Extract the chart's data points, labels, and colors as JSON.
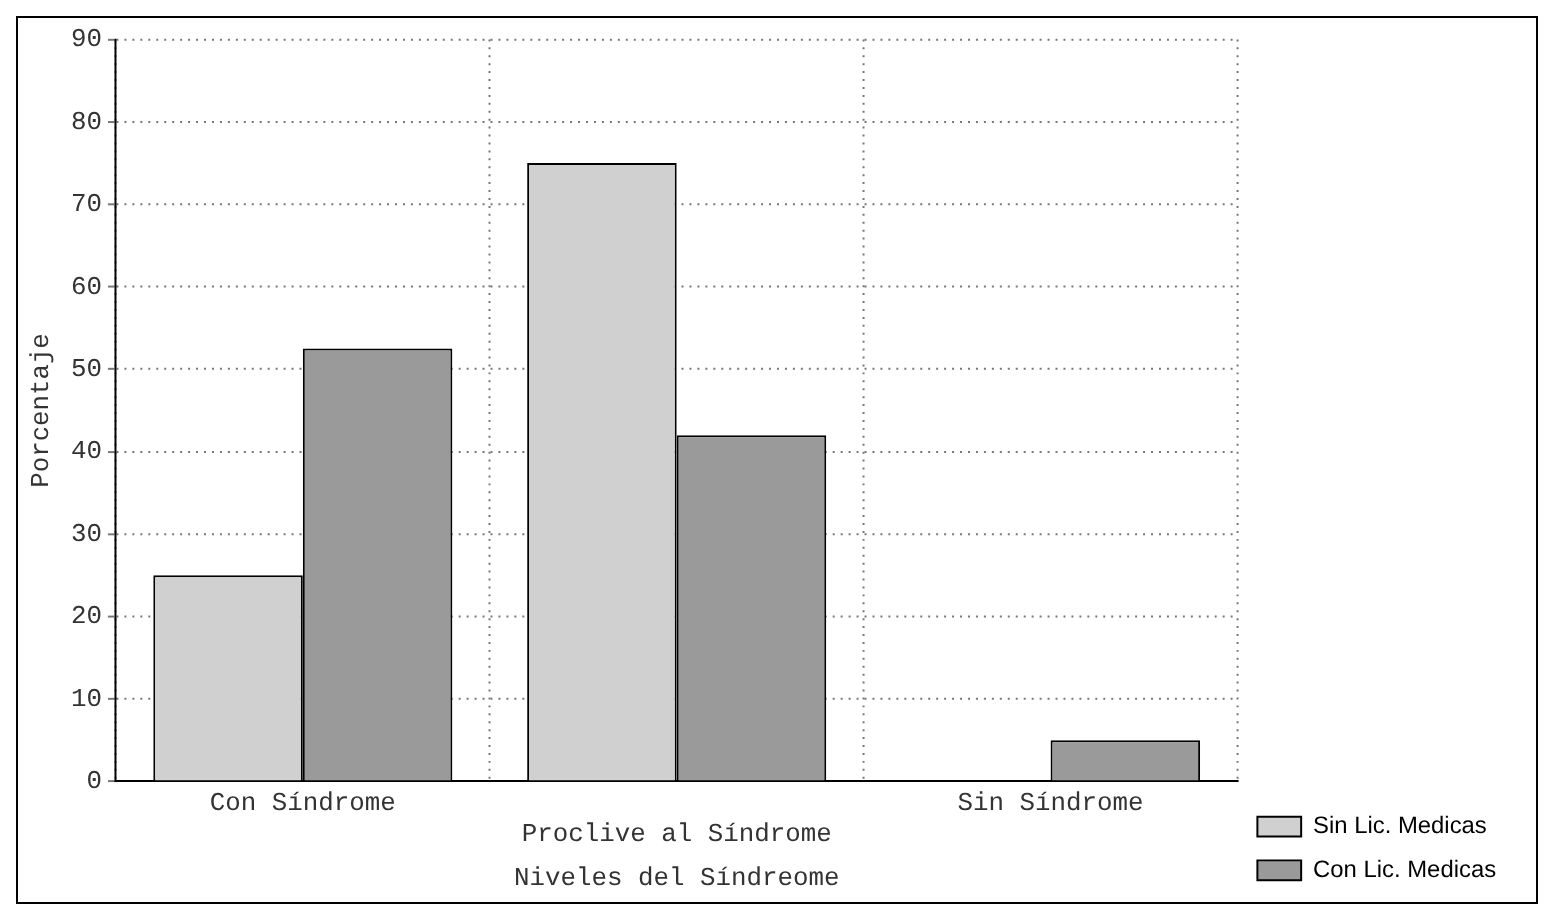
{
  "chart_data": {
    "type": "bar",
    "xlabel": "Niveles del Síndreome",
    "ylabel": "Porcentaje",
    "categories": [
      "Con Síndrome",
      "Proclive al Síndrome",
      "Sin Síndrome"
    ],
    "series": [
      {
        "name": "Sin Lic. Medicas",
        "color": "#d0d0d0",
        "values": [
          25,
          75,
          0
        ]
      },
      {
        "name": "Con Lic. Medicas",
        "color": "#9a9a9a",
        "values": [
          52.5,
          42,
          5
        ]
      }
    ],
    "ylim": [
      0,
      90
    ],
    "yticks": [
      0,
      10,
      20,
      30,
      40,
      50,
      60,
      70,
      80,
      90
    ],
    "grid": true,
    "legend": "bottom right"
  }
}
